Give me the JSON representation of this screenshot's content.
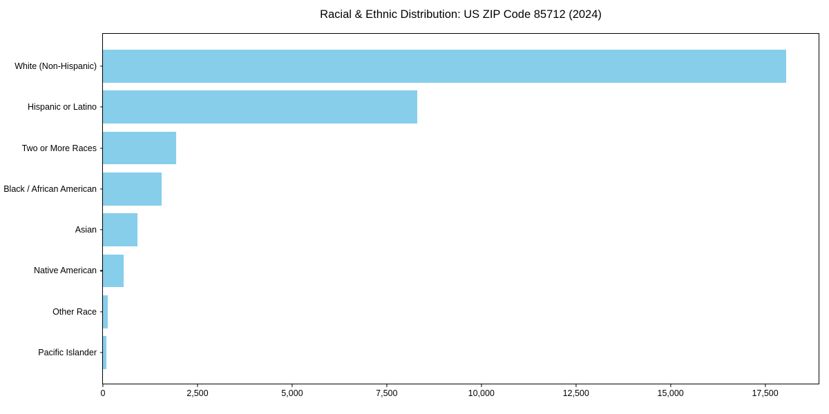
{
  "chart_data": {
    "type": "bar",
    "orientation": "horizontal",
    "title": "Racial & Ethnic Distribution: US ZIP Code 85712 (2024)",
    "categories": [
      "White (Non-Hispanic)",
      "Hispanic or Latino",
      "Two or More Races",
      "Black / African American",
      "Asian",
      "Native American",
      "Other Race",
      "Pacific Islander"
    ],
    "values": [
      18050,
      8310,
      1930,
      1560,
      920,
      545,
      130,
      100
    ],
    "bar_color": "#87CEEB",
    "xlabel": "",
    "ylabel": "",
    "xlim": [
      0,
      18950
    ],
    "x_ticks": [
      {
        "value": 0,
        "label": "0"
      },
      {
        "value": 2500,
        "label": "2,500"
      },
      {
        "value": 5000,
        "label": "5,000"
      },
      {
        "value": 7500,
        "label": "7,500"
      },
      {
        "value": 10000,
        "label": "10,000"
      },
      {
        "value": 12500,
        "label": "12,500"
      },
      {
        "value": 15000,
        "label": "15,000"
      },
      {
        "value": 17500,
        "label": "17,500"
      }
    ],
    "grid": false,
    "legend_position": "none",
    "spine_color": "#000000",
    "background_color": "#ffffff"
  }
}
